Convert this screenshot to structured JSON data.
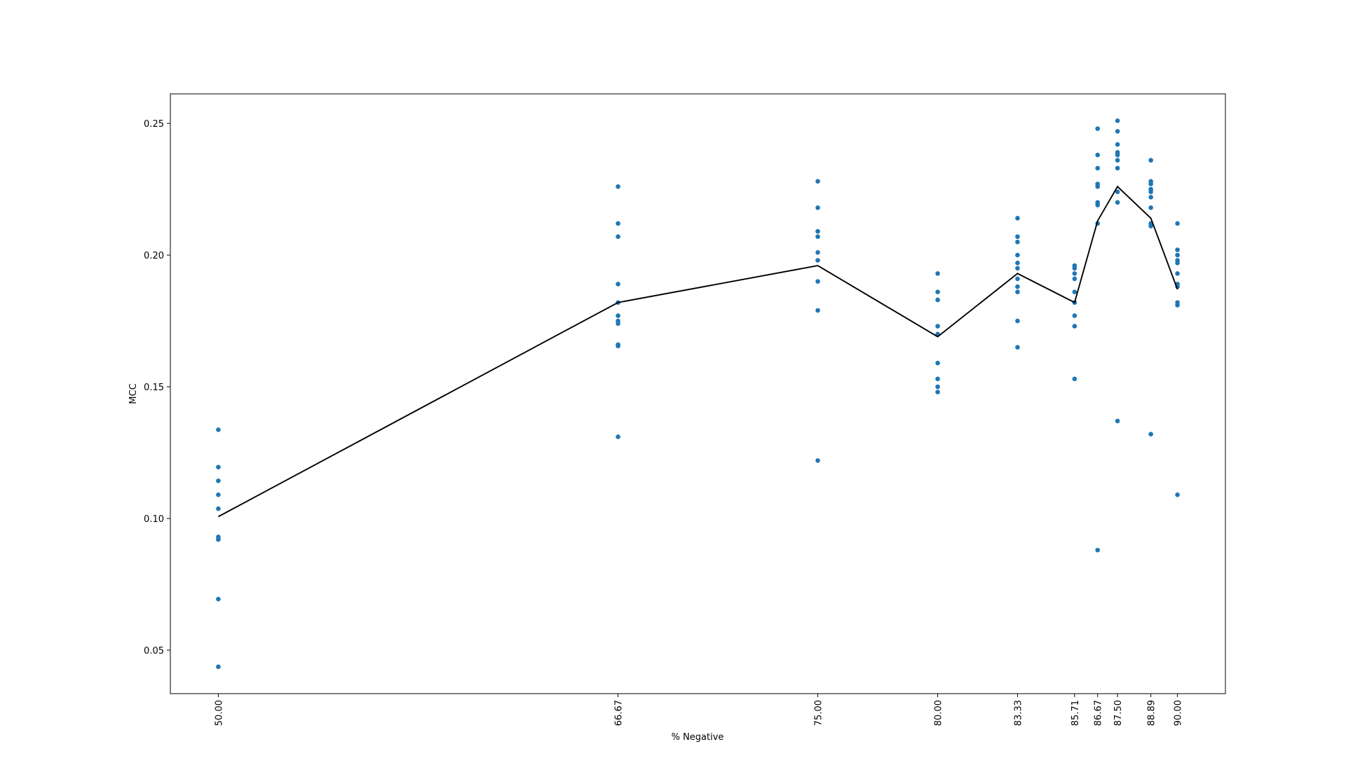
{
  "chart_data": {
    "type": "line",
    "xlabel": "% Negative",
    "ylabel": "MCC",
    "xlim": [
      48,
      92
    ],
    "ylim": [
      0.0335,
      0.2612
    ],
    "xticks": [
      {
        "value": 50,
        "label": "50.00"
      },
      66.67,
      {
        "value": 75,
        "label": "75.00"
      },
      {
        "value": 80,
        "label": "80.00"
      },
      83.33,
      85.71,
      86.67,
      {
        "value": 87.5,
        "label": "87.50"
      },
      88.89,
      {
        "value": 90,
        "label": "90.00"
      }
    ],
    "yticks": [
      0.05,
      {
        "value": 0.1,
        "label": "0.10"
      },
      0.15,
      {
        "value": 0.2,
        "label": "0.20"
      },
      0.25
    ],
    "series": [
      {
        "type": "scatter",
        "color": "#1f77b4",
        "x": [
          50,
          50,
          50,
          50,
          50,
          50,
          50,
          50,
          50,
          66.67,
          66.67,
          66.67,
          66.67,
          66.67,
          66.67,
          66.67,
          66.67,
          66.67,
          66.67,
          66.67,
          75,
          75,
          75,
          75,
          75,
          75,
          75,
          75,
          75,
          80,
          80,
          80,
          80,
          80,
          80,
          80,
          80,
          80,
          83.33,
          83.33,
          83.33,
          83.33,
          83.33,
          83.33,
          83.33,
          83.33,
          83.33,
          83.33,
          83.33,
          85.71,
          85.71,
          85.71,
          85.71,
          85.71,
          85.71,
          85.71,
          85.71,
          85.71,
          86.67,
          86.67,
          86.67,
          86.67,
          86.67,
          86.67,
          86.67,
          86.67,
          86.67,
          87.5,
          87.5,
          87.5,
          87.5,
          87.5,
          87.5,
          87.5,
          87.5,
          87.5,
          87.5,
          88.89,
          88.89,
          88.89,
          88.89,
          88.89,
          88.89,
          88.89,
          88.89,
          88.89,
          88.89,
          90,
          90,
          90,
          90,
          90,
          90,
          90,
          90,
          90,
          90,
          90
        ],
        "values": [
          0.1337,
          0.1195,
          0.1143,
          0.109,
          0.1037,
          0.093,
          0.092,
          0.0694,
          0.0437,
          0.226,
          0.212,
          0.207,
          0.189,
          0.182,
          0.177,
          0.175,
          0.174,
          0.166,
          0.1655,
          0.131,
          0.228,
          0.218,
          0.209,
          0.207,
          0.201,
          0.198,
          0.19,
          0.179,
          0.122,
          0.193,
          0.186,
          0.183,
          0.173,
          0.17,
          0.159,
          0.153,
          0.15,
          0.148,
          0.214,
          0.207,
          0.205,
          0.2,
          0.197,
          0.195,
          0.191,
          0.188,
          0.186,
          0.175,
          0.165,
          0.196,
          0.195,
          0.193,
          0.191,
          0.186,
          0.182,
          0.177,
          0.173,
          0.153,
          0.248,
          0.238,
          0.233,
          0.227,
          0.226,
          0.22,
          0.219,
          0.212,
          0.088,
          0.251,
          0.247,
          0.242,
          0.239,
          0.238,
          0.236,
          0.233,
          0.224,
          0.22,
          0.137,
          0.236,
          0.228,
          0.227,
          0.225,
          0.224,
          0.222,
          0.218,
          0.212,
          0.211,
          0.132,
          0.212,
          0.202,
          0.2,
          0.198,
          0.197,
          0.193,
          0.189,
          0.188,
          0.182,
          0.181,
          0.109
        ]
      },
      {
        "type": "line",
        "color": "#000000",
        "x": [
          50,
          66.67,
          75,
          80,
          83.33,
          85.71,
          86.67,
          87.5,
          88.89,
          90
        ],
        "values": [
          0.1007,
          0.182,
          0.196,
          0.169,
          0.193,
          0.182,
          0.213,
          0.226,
          0.214,
          0.187
        ]
      }
    ]
  }
}
